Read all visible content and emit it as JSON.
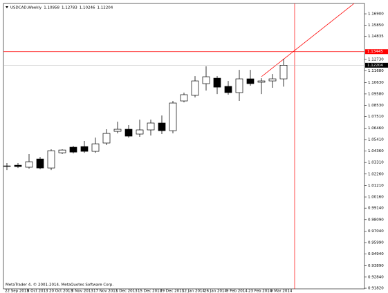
{
  "chart_data": {
    "type": "candlestick",
    "title": "USDCAD,Weekly",
    "footer": "MetaTrader 4, © 2001-2014, MetaQuotes Software Corp.",
    "categories": [
      "22 Sep 2013",
      null,
      "6 Oct 2013",
      null,
      "20 Oct 2013",
      null,
      "3 Nov 2013",
      null,
      "17 Nov 2013",
      null,
      "1 Dec 2013",
      null,
      "15 Dec 2013",
      null,
      "29 Dec 2013",
      null,
      "12 Jan 2014",
      null,
      "26 Jan 2014",
      null,
      "9 Feb 2014",
      null,
      "23 Feb 2014",
      null,
      "9 Mar 2014",
      null
    ],
    "open": [
      1.03,
      1.0306,
      1.0288,
      1.0363,
      1.0281,
      1.042,
      1.0471,
      1.0477,
      1.0433,
      1.0509,
      1.0616,
      1.0635,
      1.0591,
      1.0629,
      1.0692,
      1.0622,
      1.0894,
      1.0945,
      1.1052,
      1.1102,
      1.1027,
      1.097,
      1.1096,
      1.1065,
      1.1077,
      1.10958
    ],
    "high": [
      1.0326,
      1.0326,
      1.0408,
      1.0382,
      1.0452,
      1.0452,
      1.0483,
      1.0528,
      1.0559,
      1.0635,
      1.0704,
      1.0673,
      1.0723,
      1.0723,
      1.0761,
      1.0894,
      1.097,
      1.1121,
      1.121,
      1.1121,
      1.1077,
      1.1178,
      1.1178,
      1.1102,
      1.114,
      1.12783
    ],
    "low": [
      1.0262,
      1.0281,
      1.0275,
      1.0269,
      1.0262,
      1.0408,
      1.0414,
      1.042,
      1.042,
      1.049,
      1.0597,
      1.0559,
      1.0566,
      1.0578,
      1.0591,
      1.0597,
      1.0881,
      1.0926,
      1.0989,
      1.0957,
      1.0951,
      1.0894,
      1.1033,
      1.0957,
      1.1014,
      1.10246
    ],
    "close": [
      1.03,
      1.0294,
      1.0338,
      1.0281,
      1.0439,
      1.0445,
      1.0426,
      1.0433,
      1.0502,
      1.0597,
      1.0635,
      1.0572,
      1.0629,
      1.0692,
      1.0622,
      1.0875,
      1.0951,
      1.1077,
      1.1115,
      1.102,
      1.097,
      1.1096,
      1.1052,
      1.1077,
      1.1096,
      1.12204
    ],
    "up_color": "#ffffff",
    "down_color": "#000000",
    "ylim": [
      0.9176,
      1.1785
    ],
    "yticks": [
      {
        "value": 1.169,
        "label": "1.16900"
      },
      {
        "value": 1.1585,
        "label": "1.15850"
      },
      {
        "value": 1.14835,
        "label": "1.14835"
      },
      {
        "value": 1.1273,
        "label": "1.12730"
      },
      {
        "value": 1.1168,
        "label": "1.11680"
      },
      {
        "value": 1.1063,
        "label": "1.10630"
      },
      {
        "value": 1.0958,
        "label": "1.09580"
      },
      {
        "value": 1.0853,
        "label": "1.08530"
      },
      {
        "value": 1.0751,
        "label": "1.07510"
      },
      {
        "value": 1.0646,
        "label": "1.06460"
      },
      {
        "value": 1.0541,
        "label": "1.05410"
      },
      {
        "value": 1.0436,
        "label": "1.04360"
      },
      {
        "value": 1.0331,
        "label": "1.03310"
      },
      {
        "value": 1.0226,
        "label": "1.02260"
      },
      {
        "value": 1.0121,
        "label": "1.01210"
      },
      {
        "value": 1.0016,
        "label": "1.00160"
      },
      {
        "value": 0.9914,
        "label": "0.99140"
      },
      {
        "value": 0.9809,
        "label": "0.98090"
      },
      {
        "value": 0.9704,
        "label": "0.97040"
      },
      {
        "value": 0.9599,
        "label": "0.95990"
      },
      {
        "value": 0.9494,
        "label": "0.94940"
      },
      {
        "value": 0.9389,
        "label": "0.93890"
      },
      {
        "value": 0.9284,
        "label": "0.92840"
      },
      {
        "value": 0.9182,
        "label": "0.91820"
      }
    ],
    "crosshair_price": 1.13445,
    "crosshair_color": "#ff0000"
  }
}
